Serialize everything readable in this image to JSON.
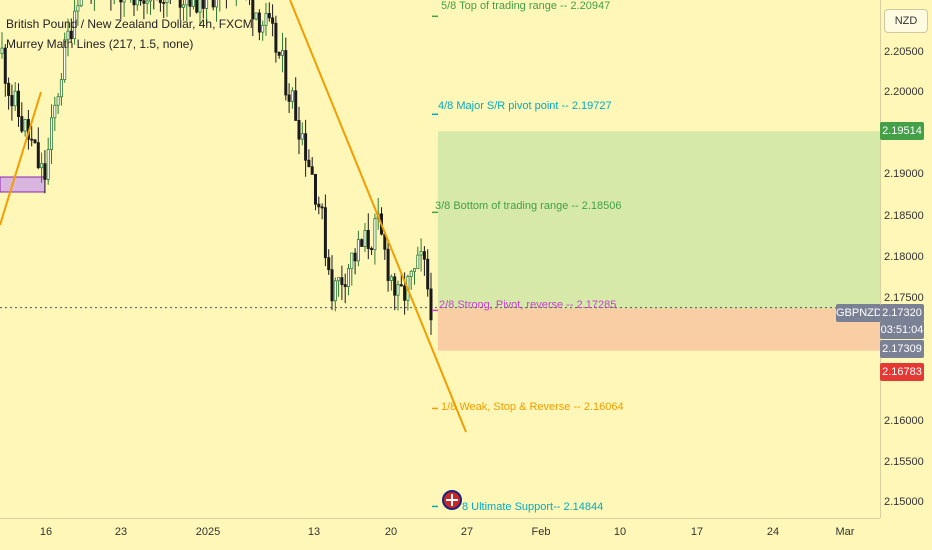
{
  "chart_data": {
    "type": "candlestick",
    "title": "British Pound / New Zealand Dollar, 4h, FXCM",
    "indicator": "Murrey Math Lines (217, 1.5, none)",
    "currency": "NZD",
    "symbol": "GBPNZD",
    "ylim": [
      2.147,
      2.2115
    ],
    "y_ticks": [
      "2.20500",
      "2.20000",
      "2.19000",
      "2.18500",
      "2.18000",
      "2.17500",
      "2.16000",
      "2.15500",
      "2.15000"
    ],
    "x_ticks": [
      "16",
      "23",
      "2025",
      "13",
      "20",
      "27",
      "Feb",
      "10",
      "17",
      "24",
      "Mar"
    ],
    "price_badges": [
      {
        "value": "2.19514",
        "color": "#43a047"
      },
      {
        "value": "2.17320",
        "color": "#7b8194"
      },
      {
        "value": "03:51:04",
        "color": "#7b8194"
      },
      {
        "value": "2.17309",
        "color": "#7b8194"
      },
      {
        "value": "2.16783",
        "color": "#e53935"
      }
    ],
    "murrey_lines": [
      {
        "label": "5/8 Top of trading range --  2.20947",
        "value": 2.20947,
        "color": "#43a047"
      },
      {
        "label": "4/8 Major S/R pivot point --  2.19727",
        "value": 2.19727,
        "color": "#00acc1"
      },
      {
        "label": "3/8 Bottom of trading range --  2.18506",
        "value": 2.18506,
        "color": "#43a047"
      },
      {
        "label": "2/8 Strong, Pivot, reverse --  2.17285",
        "value": 2.17285,
        "color": "#c940c9"
      },
      {
        "label": "1/8 Weak, Stop & Reverse --  2.16064",
        "value": 2.16064,
        "color": "#f29d00"
      },
      {
        "label": "8 Ultimate Support--  2.14844",
        "value": 2.14844,
        "color": "#00acc1"
      }
    ],
    "current_price": 2.1732,
    "target_zone": [
      2.17309,
      2.19514
    ],
    "stop_zone": [
      2.16783,
      2.17309
    ],
    "colors": {
      "background": "#fff7b8",
      "up": "#2e7d32",
      "down": "#1b1b1b",
      "trendline": "#f29d00",
      "target": "#cfe6a6",
      "stop": "#f9c9a2"
    }
  }
}
